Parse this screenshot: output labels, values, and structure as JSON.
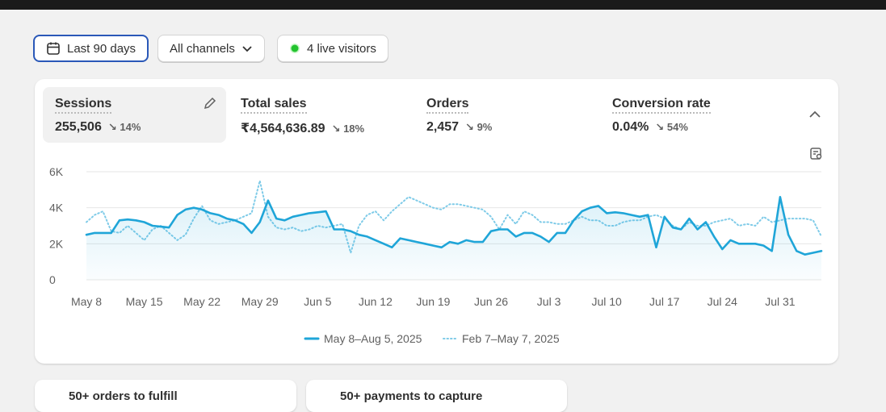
{
  "controls": {
    "date_range": "Last 90 days",
    "channels": "All channels",
    "live_visitors": "4 live visitors"
  },
  "metrics": [
    {
      "name": "Sessions",
      "value": "255,506",
      "change": "14%"
    },
    {
      "name": "Total sales",
      "value": "₹4,564,636.89",
      "change": "18%"
    },
    {
      "name": "Orders",
      "value": "2,457",
      "change": "9%"
    },
    {
      "name": "Conversion rate",
      "value": "0.04%",
      "change": "54%"
    }
  ],
  "cards": [
    "50+ orders to fulfill",
    "50+ payments to capture"
  ],
  "chart_data": {
    "type": "line",
    "categories": [
      "May 8",
      null,
      null,
      null,
      null,
      null,
      null,
      "May 15",
      null,
      null,
      null,
      null,
      null,
      null,
      "May 22",
      null,
      null,
      null,
      null,
      null,
      null,
      "May 29",
      null,
      null,
      null,
      null,
      null,
      null,
      "Jun 5",
      null,
      null,
      null,
      null,
      null,
      null,
      "Jun 12",
      null,
      null,
      null,
      null,
      null,
      null,
      "Jun 19",
      null,
      null,
      null,
      null,
      null,
      null,
      "Jun 26",
      null,
      null,
      null,
      null,
      null,
      null,
      "Jul 3",
      null,
      null,
      null,
      null,
      null,
      null,
      "Jul 10",
      null,
      null,
      null,
      null,
      null,
      null,
      "Jul 17",
      null,
      null,
      null,
      null,
      null,
      null,
      "Jul 24",
      null,
      null,
      null,
      null,
      null,
      null,
      "Jul 31",
      null,
      null,
      null,
      null,
      null
    ],
    "series": [
      {
        "name": "May 8–Aug 5, 2025",
        "color": "#1fa5d8",
        "style": "solid",
        "values": [
          2500,
          2600,
          2600,
          2600,
          3300,
          3350,
          3300,
          3200,
          3000,
          2950,
          2900,
          3600,
          3900,
          4000,
          3900,
          3700,
          3600,
          3400,
          3300,
          3100,
          2600,
          3200,
          4400,
          3400,
          3300,
          3500,
          3600,
          3700,
          3750,
          3800,
          2800,
          2800,
          2700,
          2500,
          2400,
          2200,
          2000,
          1800,
          2300,
          2200,
          2100,
          2000,
          1900,
          1800,
          2100,
          2000,
          2200,
          2100,
          2100,
          2700,
          2800,
          2800,
          2400,
          2600,
          2600,
          2400,
          2100,
          2600,
          2600,
          3300,
          3800,
          4000,
          4100,
          3700,
          3750,
          3700,
          3600,
          3500,
          3600,
          1800,
          3500,
          2900,
          2800,
          3400,
          2800,
          3200,
          2400,
          1700,
          2200,
          2000,
          2000,
          2000,
          1900,
          1600,
          4600,
          2500,
          1600,
          1400,
          1500,
          1600
        ]
      },
      {
        "name": "Feb 7–May 7, 2025",
        "color": "#7fcbe8",
        "style": "dotted",
        "values": [
          3200,
          3600,
          3800,
          2700,
          2600,
          3000,
          2600,
          2200,
          2800,
          3000,
          2600,
          2200,
          2500,
          3400,
          4100,
          3300,
          3100,
          3200,
          3300,
          3500,
          3700,
          5500,
          3500,
          2900,
          2800,
          2900,
          2700,
          2800,
          3000,
          2900,
          3000,
          3100,
          1500,
          3000,
          3600,
          3800,
          3300,
          3800,
          4200,
          4600,
          4400,
          4200,
          4000,
          3900,
          4200,
          4200,
          4100,
          4000,
          3900,
          3500,
          2800,
          3600,
          3100,
          3800,
          3600,
          3200,
          3200,
          3100,
          3100,
          3300,
          3500,
          3300,
          3300,
          3000,
          3000,
          3200,
          3300,
          3300,
          3500,
          3600,
          3400,
          3000,
          2800,
          3200,
          3000,
          3000,
          3200,
          3300,
          3400,
          3000,
          3100,
          3000,
          3500,
          3200,
          3300,
          3400,
          3400,
          3400,
          3300,
          2400
        ]
      }
    ],
    "ylim": [
      0,
      6000
    ],
    "yticks": [
      0,
      {
        "value": 2000,
        "label": "2K"
      },
      {
        "value": 4000,
        "label": "4K"
      },
      {
        "value": 6000,
        "label": "6K"
      }
    ],
    "grid": true,
    "legend": "bottom"
  }
}
